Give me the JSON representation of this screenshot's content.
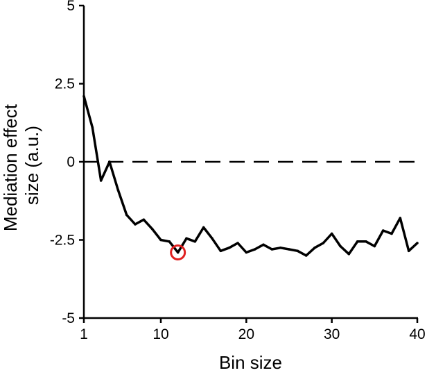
{
  "chart_data": {
    "type": "line",
    "title": "",
    "xlabel": "Bin size",
    "ylabel_lines": [
      "Mediation effect",
      "size (a.u.)"
    ],
    "xlim": [
      1,
      40
    ],
    "ylim": [
      -5,
      5
    ],
    "xticks": [
      1,
      10,
      20,
      30,
      40
    ],
    "xtick_labels": [
      "1",
      "10",
      "20",
      "30",
      "40"
    ],
    "yticks": [
      5,
      2.5,
      0,
      -2.5,
      -5
    ],
    "ytick_labels": [
      "5",
      "2.5",
      "0",
      "-2.5",
      "-5"
    ],
    "grid": false,
    "reference_line": {
      "y": 0,
      "style": "dashed",
      "color": "#000000"
    },
    "highlight": {
      "x": 12,
      "y": -2.9,
      "color": "#e02020",
      "marker": "open-circle"
    },
    "series": [
      {
        "color": "#000000",
        "x": [
          1,
          2,
          3,
          4,
          5,
          6,
          7,
          8,
          9,
          10,
          11,
          12,
          13,
          14,
          15,
          16,
          17,
          18,
          19,
          20,
          21,
          22,
          23,
          24,
          25,
          26,
          27,
          28,
          29,
          30,
          31,
          32,
          33,
          34,
          35,
          36,
          37,
          38,
          39,
          40
        ],
        "y": [
          2.1,
          1.1,
          -0.6,
          0.0,
          -0.9,
          -1.7,
          -2.0,
          -1.85,
          -2.15,
          -2.5,
          -2.55,
          -2.9,
          -2.45,
          -2.55,
          -2.1,
          -2.45,
          -2.85,
          -2.75,
          -2.6,
          -2.9,
          -2.8,
          -2.65,
          -2.8,
          -2.75,
          -2.8,
          -2.85,
          -3.0,
          -2.75,
          -2.6,
          -2.3,
          -2.7,
          -2.95,
          -2.55,
          -2.55,
          -2.7,
          -2.2,
          -2.3,
          -1.8,
          -2.85,
          -2.6
        ]
      }
    ]
  }
}
